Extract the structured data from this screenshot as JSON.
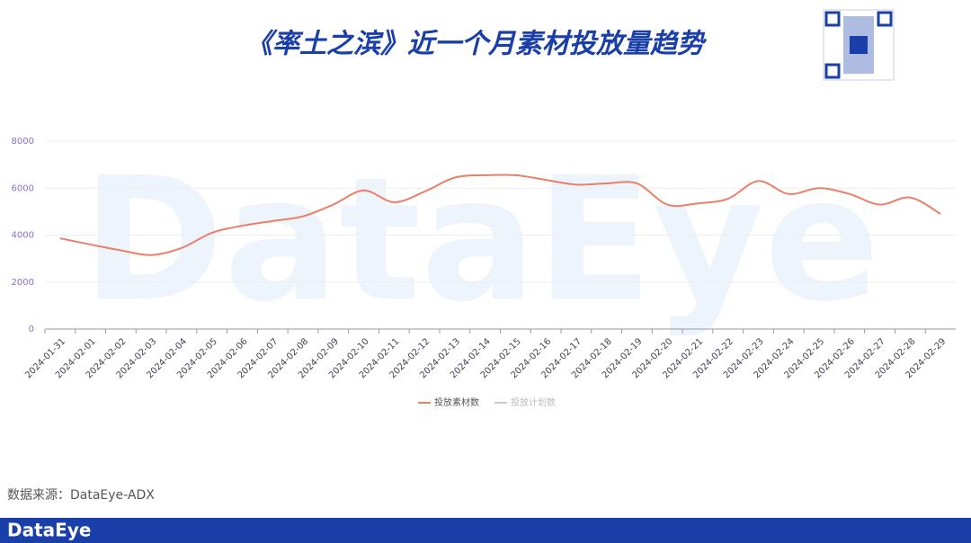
{
  "chart_data": {
    "type": "line",
    "title": "《率土之滨》近一个月素材投放量趋势",
    "watermark": "DataEye",
    "categories": [
      "2024-01-31",
      "2024-02-01",
      "2024-02-02",
      "2024-02-03",
      "2024-02-04",
      "2024-02-05",
      "2024-02-06",
      "2024-02-07",
      "2024-02-08",
      "2024-02-09",
      "2024-02-10",
      "2024-02-11",
      "2024-02-12",
      "2024-02-13",
      "2024-02-14",
      "2024-02-15",
      "2024-02-16",
      "2024-02-17",
      "2024-02-18",
      "2024-02-19",
      "2024-02-20",
      "2024-02-21",
      "2024-02-22",
      "2024-02-23",
      "2024-02-24",
      "2024-02-25",
      "2024-02-26",
      "2024-02-27",
      "2024-02-28",
      "2024-02-29"
    ],
    "series": [
      {
        "name": "投放素材数",
        "color": "#e8806a",
        "values": [
          3860,
          3600,
          3350,
          3150,
          3450,
          4100,
          4400,
          4600,
          4800,
          5300,
          5900,
          5400,
          5850,
          6450,
          6550,
          6550,
          6350,
          6150,
          6200,
          6200,
          5300,
          5350,
          5550,
          6300,
          5750,
          6000,
          5750,
          5300,
          5600,
          4900
        ]
      },
      {
        "name": "投放计划数",
        "color": "#cccccc",
        "hidden": true
      }
    ],
    "ylim": [
      0,
      8000
    ],
    "yticks": [
      0,
      2000,
      4000,
      6000,
      8000
    ],
    "grid": true
  },
  "source": "数据来源：DataEye-ADX",
  "footer_logo": "DataEye"
}
